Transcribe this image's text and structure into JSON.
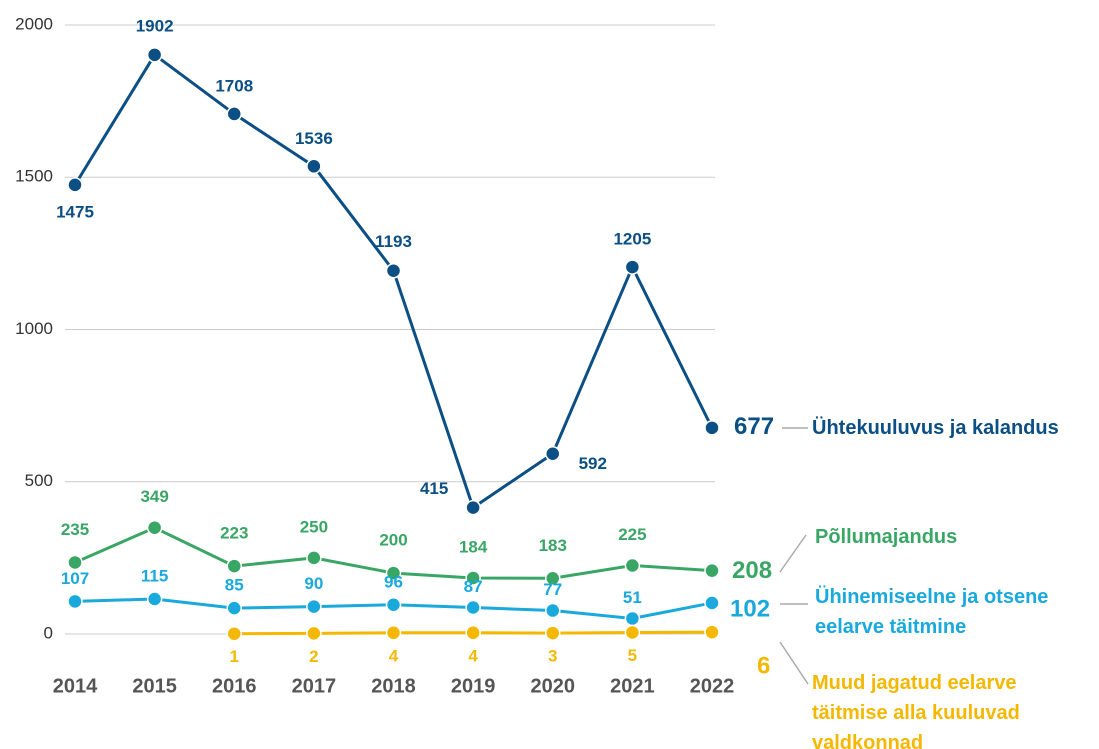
{
  "chart_data": {
    "type": "line",
    "categories": [
      "2014",
      "2015",
      "2016",
      "2017",
      "2018",
      "2019",
      "2020",
      "2021",
      "2022"
    ],
    "series": [
      {
        "name": "Ühtekuuluvus ja kalandus",
        "color": "#0b4f84",
        "values": [
          1475,
          1902,
          1708,
          1536,
          1193,
          415,
          592,
          1205,
          677
        ]
      },
      {
        "name": "Põllumajandus",
        "color": "#3aa665",
        "values": [
          235,
          349,
          223,
          250,
          200,
          184,
          183,
          225,
          208
        ]
      },
      {
        "name": "Ühinemiseelne ja otsene eelarve täitmine",
        "color": "#1aa9dc",
        "values": [
          107,
          115,
          85,
          90,
          96,
          87,
          77,
          51,
          102
        ]
      },
      {
        "name": "Muud jagatud eelarve täitmise alla kuuluvad valdkonnad",
        "color": "#f5b800",
        "values": [
          null,
          null,
          1,
          2,
          4,
          4,
          3,
          5,
          6
        ]
      }
    ],
    "ylim": [
      0,
      2000
    ],
    "yticks": [
      0,
      500,
      1000,
      1500,
      2000
    ],
    "grid": true
  }
}
